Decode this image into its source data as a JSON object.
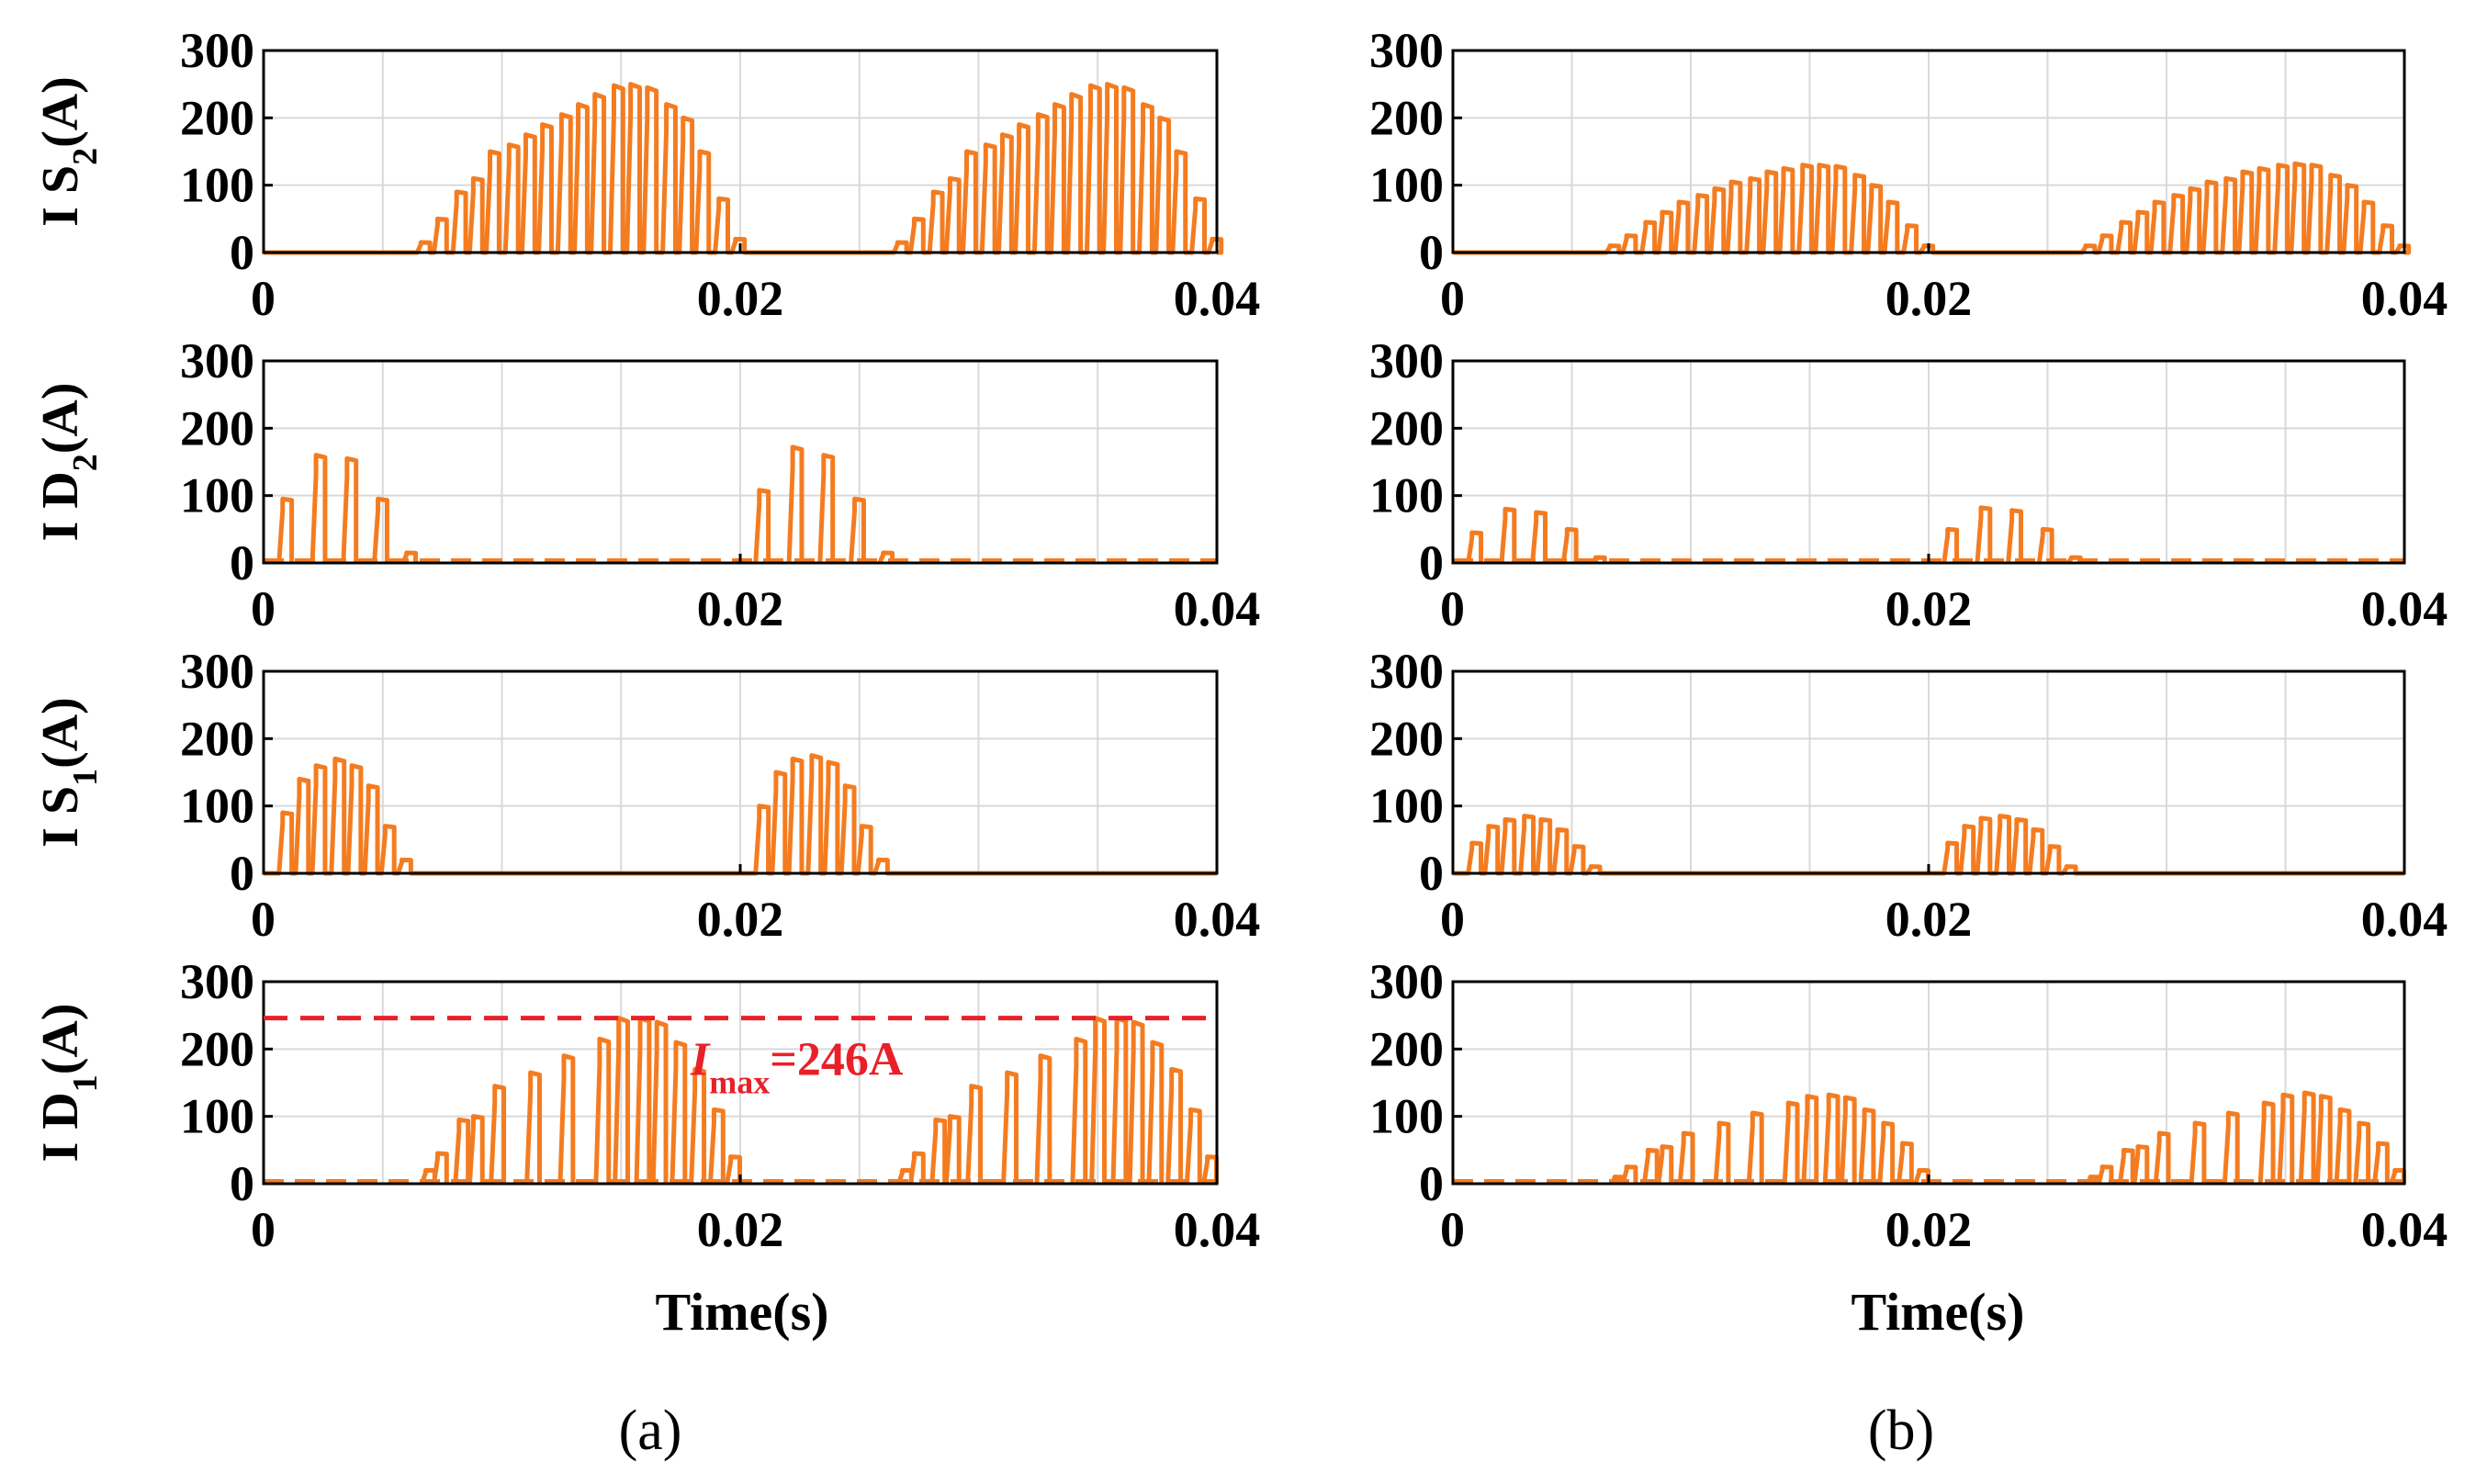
{
  "colors": {
    "series": "#f47c20",
    "annotation": "#e8202a",
    "grid": "#d9d9d9",
    "axis": "#000000"
  },
  "figure": {
    "panels": [
      {
        "caption": "(a)",
        "xlabel": "Time(s)"
      },
      {
        "caption": "(b)",
        "xlabel": "Time(s)"
      }
    ]
  },
  "chart_data": [
    {
      "type": "line",
      "panel": "a",
      "ylabel": "I S",
      "ylabel_sub": "2",
      "ylabel_tail": "(A)",
      "xlim": [
        0,
        0.04
      ],
      "ylim": [
        0,
        300
      ],
      "xticks": [
        "0",
        "0.02",
        "0.04"
      ],
      "yticks": [
        "0",
        "100",
        "200",
        "300"
      ],
      "grid": true,
      "pulses": [
        [
          0.0066,
          15
        ],
        [
          0.0073,
          50
        ],
        [
          0.0081,
          90
        ],
        [
          0.0088,
          110
        ],
        [
          0.0095,
          150
        ],
        [
          0.0103,
          160
        ],
        [
          0.011,
          175
        ],
        [
          0.0117,
          190
        ],
        [
          0.0125,
          205
        ],
        [
          0.0132,
          220
        ],
        [
          0.0139,
          235
        ],
        [
          0.0147,
          248
        ],
        [
          0.0154,
          250
        ],
        [
          0.0161,
          245
        ],
        [
          0.0169,
          220
        ],
        [
          0.0176,
          200
        ],
        [
          0.0183,
          150
        ],
        [
          0.0191,
          80
        ],
        [
          0.0198,
          20
        ],
        [
          0.0266,
          15
        ],
        [
          0.0273,
          50
        ],
        [
          0.0281,
          90
        ],
        [
          0.0288,
          110
        ],
        [
          0.0295,
          150
        ],
        [
          0.0303,
          160
        ],
        [
          0.031,
          175
        ],
        [
          0.0317,
          190
        ],
        [
          0.0325,
          205
        ],
        [
          0.0332,
          220
        ],
        [
          0.0339,
          235
        ],
        [
          0.0347,
          248
        ],
        [
          0.0354,
          250
        ],
        [
          0.0361,
          245
        ],
        [
          0.0369,
          220
        ],
        [
          0.0376,
          200
        ],
        [
          0.0383,
          150
        ],
        [
          0.0391,
          80
        ],
        [
          0.0398,
          20
        ]
      ]
    },
    {
      "type": "line",
      "panel": "a",
      "ylabel": "I D",
      "ylabel_sub": "2",
      "ylabel_tail": "(A)",
      "xlim": [
        0,
        0.04
      ],
      "ylim": [
        0,
        300
      ],
      "xticks": [
        "0",
        "0.02",
        "0.04"
      ],
      "yticks": [
        "0",
        "100",
        "200",
        "300"
      ],
      "grid": true,
      "dashed_baseline": true,
      "pulses": [
        [
          0.0008,
          95
        ],
        [
          0.0022,
          160
        ],
        [
          0.0035,
          155
        ],
        [
          0.0048,
          95
        ],
        [
          0.006,
          15
        ],
        [
          0.0208,
          108
        ],
        [
          0.0222,
          172
        ],
        [
          0.0235,
          160
        ],
        [
          0.0248,
          95
        ],
        [
          0.026,
          15
        ]
      ]
    },
    {
      "type": "line",
      "panel": "a",
      "ylabel": "I S",
      "ylabel_sub": "1",
      "ylabel_tail": "(A)",
      "xlim": [
        0,
        0.04
      ],
      "ylim": [
        0,
        300
      ],
      "xticks": [
        "0",
        "0.02",
        "0.04"
      ],
      "yticks": [
        "0",
        "100",
        "200",
        "300"
      ],
      "grid": true,
      "pulses": [
        [
          0.0008,
          90
        ],
        [
          0.0015,
          140
        ],
        [
          0.0022,
          160
        ],
        [
          0.003,
          170
        ],
        [
          0.0037,
          160
        ],
        [
          0.0044,
          130
        ],
        [
          0.0051,
          70
        ],
        [
          0.0058,
          20
        ],
        [
          0.0208,
          100
        ],
        [
          0.0215,
          150
        ],
        [
          0.0222,
          170
        ],
        [
          0.023,
          175
        ],
        [
          0.0237,
          165
        ],
        [
          0.0244,
          130
        ],
        [
          0.0251,
          70
        ],
        [
          0.0258,
          20
        ]
      ]
    },
    {
      "type": "line",
      "panel": "a",
      "ylabel": "I D",
      "ylabel_sub": "1",
      "ylabel_tail": "(A)",
      "xlim": [
        0,
        0.04
      ],
      "ylim": [
        0,
        300
      ],
      "xticks": [
        "0",
        "0.02",
        "0.04"
      ],
      "yticks": [
        "0",
        "100",
        "200",
        "300"
      ],
      "grid": true,
      "dashed_baseline": true,
      "annotation": {
        "italic": "I",
        "sub": "max",
        "tail": "=246A",
        "value": 246
      },
      "pulses": [
        [
          0.0068,
          20
        ],
        [
          0.0073,
          45
        ],
        [
          0.0082,
          95
        ],
        [
          0.0088,
          100
        ],
        [
          0.0097,
          145
        ],
        [
          0.0112,
          165
        ],
        [
          0.0126,
          190
        ],
        [
          0.0141,
          215
        ],
        [
          0.0149,
          246
        ],
        [
          0.0158,
          246
        ],
        [
          0.0165,
          240
        ],
        [
          0.0173,
          210
        ],
        [
          0.0181,
          170
        ],
        [
          0.0189,
          110
        ],
        [
          0.0196,
          40
        ],
        [
          0.0268,
          20
        ],
        [
          0.0273,
          45
        ],
        [
          0.0282,
          95
        ],
        [
          0.0288,
          100
        ],
        [
          0.0297,
          145
        ],
        [
          0.0312,
          165
        ],
        [
          0.0326,
          190
        ],
        [
          0.0341,
          215
        ],
        [
          0.0349,
          246
        ],
        [
          0.0358,
          246
        ],
        [
          0.0365,
          240
        ],
        [
          0.0373,
          210
        ],
        [
          0.0381,
          170
        ],
        [
          0.0389,
          110
        ],
        [
          0.0396,
          40
        ]
      ]
    },
    {
      "type": "line",
      "panel": "b",
      "ylabel": "",
      "xlim": [
        0,
        0.04
      ],
      "ylim": [
        0,
        300
      ],
      "xticks": [
        "0",
        "0.02",
        "0.04"
      ],
      "yticks": [
        "0",
        "100",
        "200",
        "300"
      ],
      "grid": true,
      "pulses": [
        [
          0.0066,
          10
        ],
        [
          0.0073,
          25
        ],
        [
          0.0081,
          45
        ],
        [
          0.0088,
          60
        ],
        [
          0.0095,
          75
        ],
        [
          0.0103,
          85
        ],
        [
          0.011,
          95
        ],
        [
          0.0117,
          105
        ],
        [
          0.0125,
          110
        ],
        [
          0.0132,
          120
        ],
        [
          0.0139,
          125
        ],
        [
          0.0147,
          130
        ],
        [
          0.0154,
          130
        ],
        [
          0.0161,
          128
        ],
        [
          0.0169,
          115
        ],
        [
          0.0176,
          100
        ],
        [
          0.0183,
          75
        ],
        [
          0.0191,
          40
        ],
        [
          0.0198,
          10
        ],
        [
          0.0266,
          10
        ],
        [
          0.0273,
          25
        ],
        [
          0.0281,
          45
        ],
        [
          0.0288,
          60
        ],
        [
          0.0295,
          75
        ],
        [
          0.0303,
          85
        ],
        [
          0.031,
          95
        ],
        [
          0.0317,
          105
        ],
        [
          0.0325,
          110
        ],
        [
          0.0332,
          120
        ],
        [
          0.0339,
          125
        ],
        [
          0.0347,
          130
        ],
        [
          0.0354,
          132
        ],
        [
          0.0361,
          130
        ],
        [
          0.0369,
          115
        ],
        [
          0.0376,
          100
        ],
        [
          0.0383,
          75
        ],
        [
          0.0391,
          40
        ],
        [
          0.0398,
          10
        ]
      ]
    },
    {
      "type": "line",
      "panel": "b",
      "ylabel": "",
      "xlim": [
        0,
        0.04
      ],
      "ylim": [
        0,
        300
      ],
      "xticks": [
        "0",
        "0.02",
        "0.04"
      ],
      "yticks": [
        "0",
        "100",
        "200",
        "300"
      ],
      "grid": true,
      "dashed_baseline": true,
      "pulses": [
        [
          0.0008,
          45
        ],
        [
          0.0022,
          80
        ],
        [
          0.0035,
          75
        ],
        [
          0.0048,
          50
        ],
        [
          0.006,
          8
        ],
        [
          0.0208,
          50
        ],
        [
          0.0222,
          82
        ],
        [
          0.0235,
          78
        ],
        [
          0.0248,
          50
        ],
        [
          0.026,
          8
        ]
      ]
    },
    {
      "type": "line",
      "panel": "b",
      "ylabel": "",
      "xlim": [
        0,
        0.04
      ],
      "ylim": [
        0,
        300
      ],
      "xticks": [
        "0",
        "0.02",
        "0.04"
      ],
      "yticks": [
        "0",
        "100",
        "200",
        "300"
      ],
      "grid": true,
      "pulses": [
        [
          0.0008,
          45
        ],
        [
          0.0015,
          70
        ],
        [
          0.0022,
          80
        ],
        [
          0.003,
          85
        ],
        [
          0.0037,
          80
        ],
        [
          0.0044,
          65
        ],
        [
          0.0051,
          40
        ],
        [
          0.0058,
          10
        ],
        [
          0.0208,
          45
        ],
        [
          0.0215,
          70
        ],
        [
          0.0222,
          82
        ],
        [
          0.023,
          85
        ],
        [
          0.0237,
          80
        ],
        [
          0.0244,
          65
        ],
        [
          0.0251,
          40
        ],
        [
          0.0258,
          10
        ]
      ]
    },
    {
      "type": "line",
      "panel": "b",
      "ylabel": "",
      "xlim": [
        0,
        0.04
      ],
      "ylim": [
        0,
        300
      ],
      "xticks": [
        "0",
        "0.02",
        "0.04"
      ],
      "yticks": [
        "0",
        "100",
        "200",
        "300"
      ],
      "grid": true,
      "dashed_baseline": true,
      "pulses": [
        [
          0.0068,
          10
        ],
        [
          0.0073,
          25
        ],
        [
          0.0082,
          50
        ],
        [
          0.0088,
          55
        ],
        [
          0.0097,
          75
        ],
        [
          0.0112,
          90
        ],
        [
          0.0126,
          105
        ],
        [
          0.0141,
          120
        ],
        [
          0.0149,
          130
        ],
        [
          0.0158,
          132
        ],
        [
          0.0165,
          128
        ],
        [
          0.0173,
          110
        ],
        [
          0.0181,
          90
        ],
        [
          0.0189,
          60
        ],
        [
          0.0196,
          20
        ],
        [
          0.0268,
          10
        ],
        [
          0.0273,
          25
        ],
        [
          0.0282,
          50
        ],
        [
          0.0288,
          55
        ],
        [
          0.0297,
          75
        ],
        [
          0.0312,
          90
        ],
        [
          0.0326,
          105
        ],
        [
          0.0341,
          120
        ],
        [
          0.0349,
          132
        ],
        [
          0.0358,
          135
        ],
        [
          0.0365,
          130
        ],
        [
          0.0373,
          110
        ],
        [
          0.0381,
          90
        ],
        [
          0.0389,
          60
        ],
        [
          0.0396,
          20
        ]
      ]
    }
  ]
}
